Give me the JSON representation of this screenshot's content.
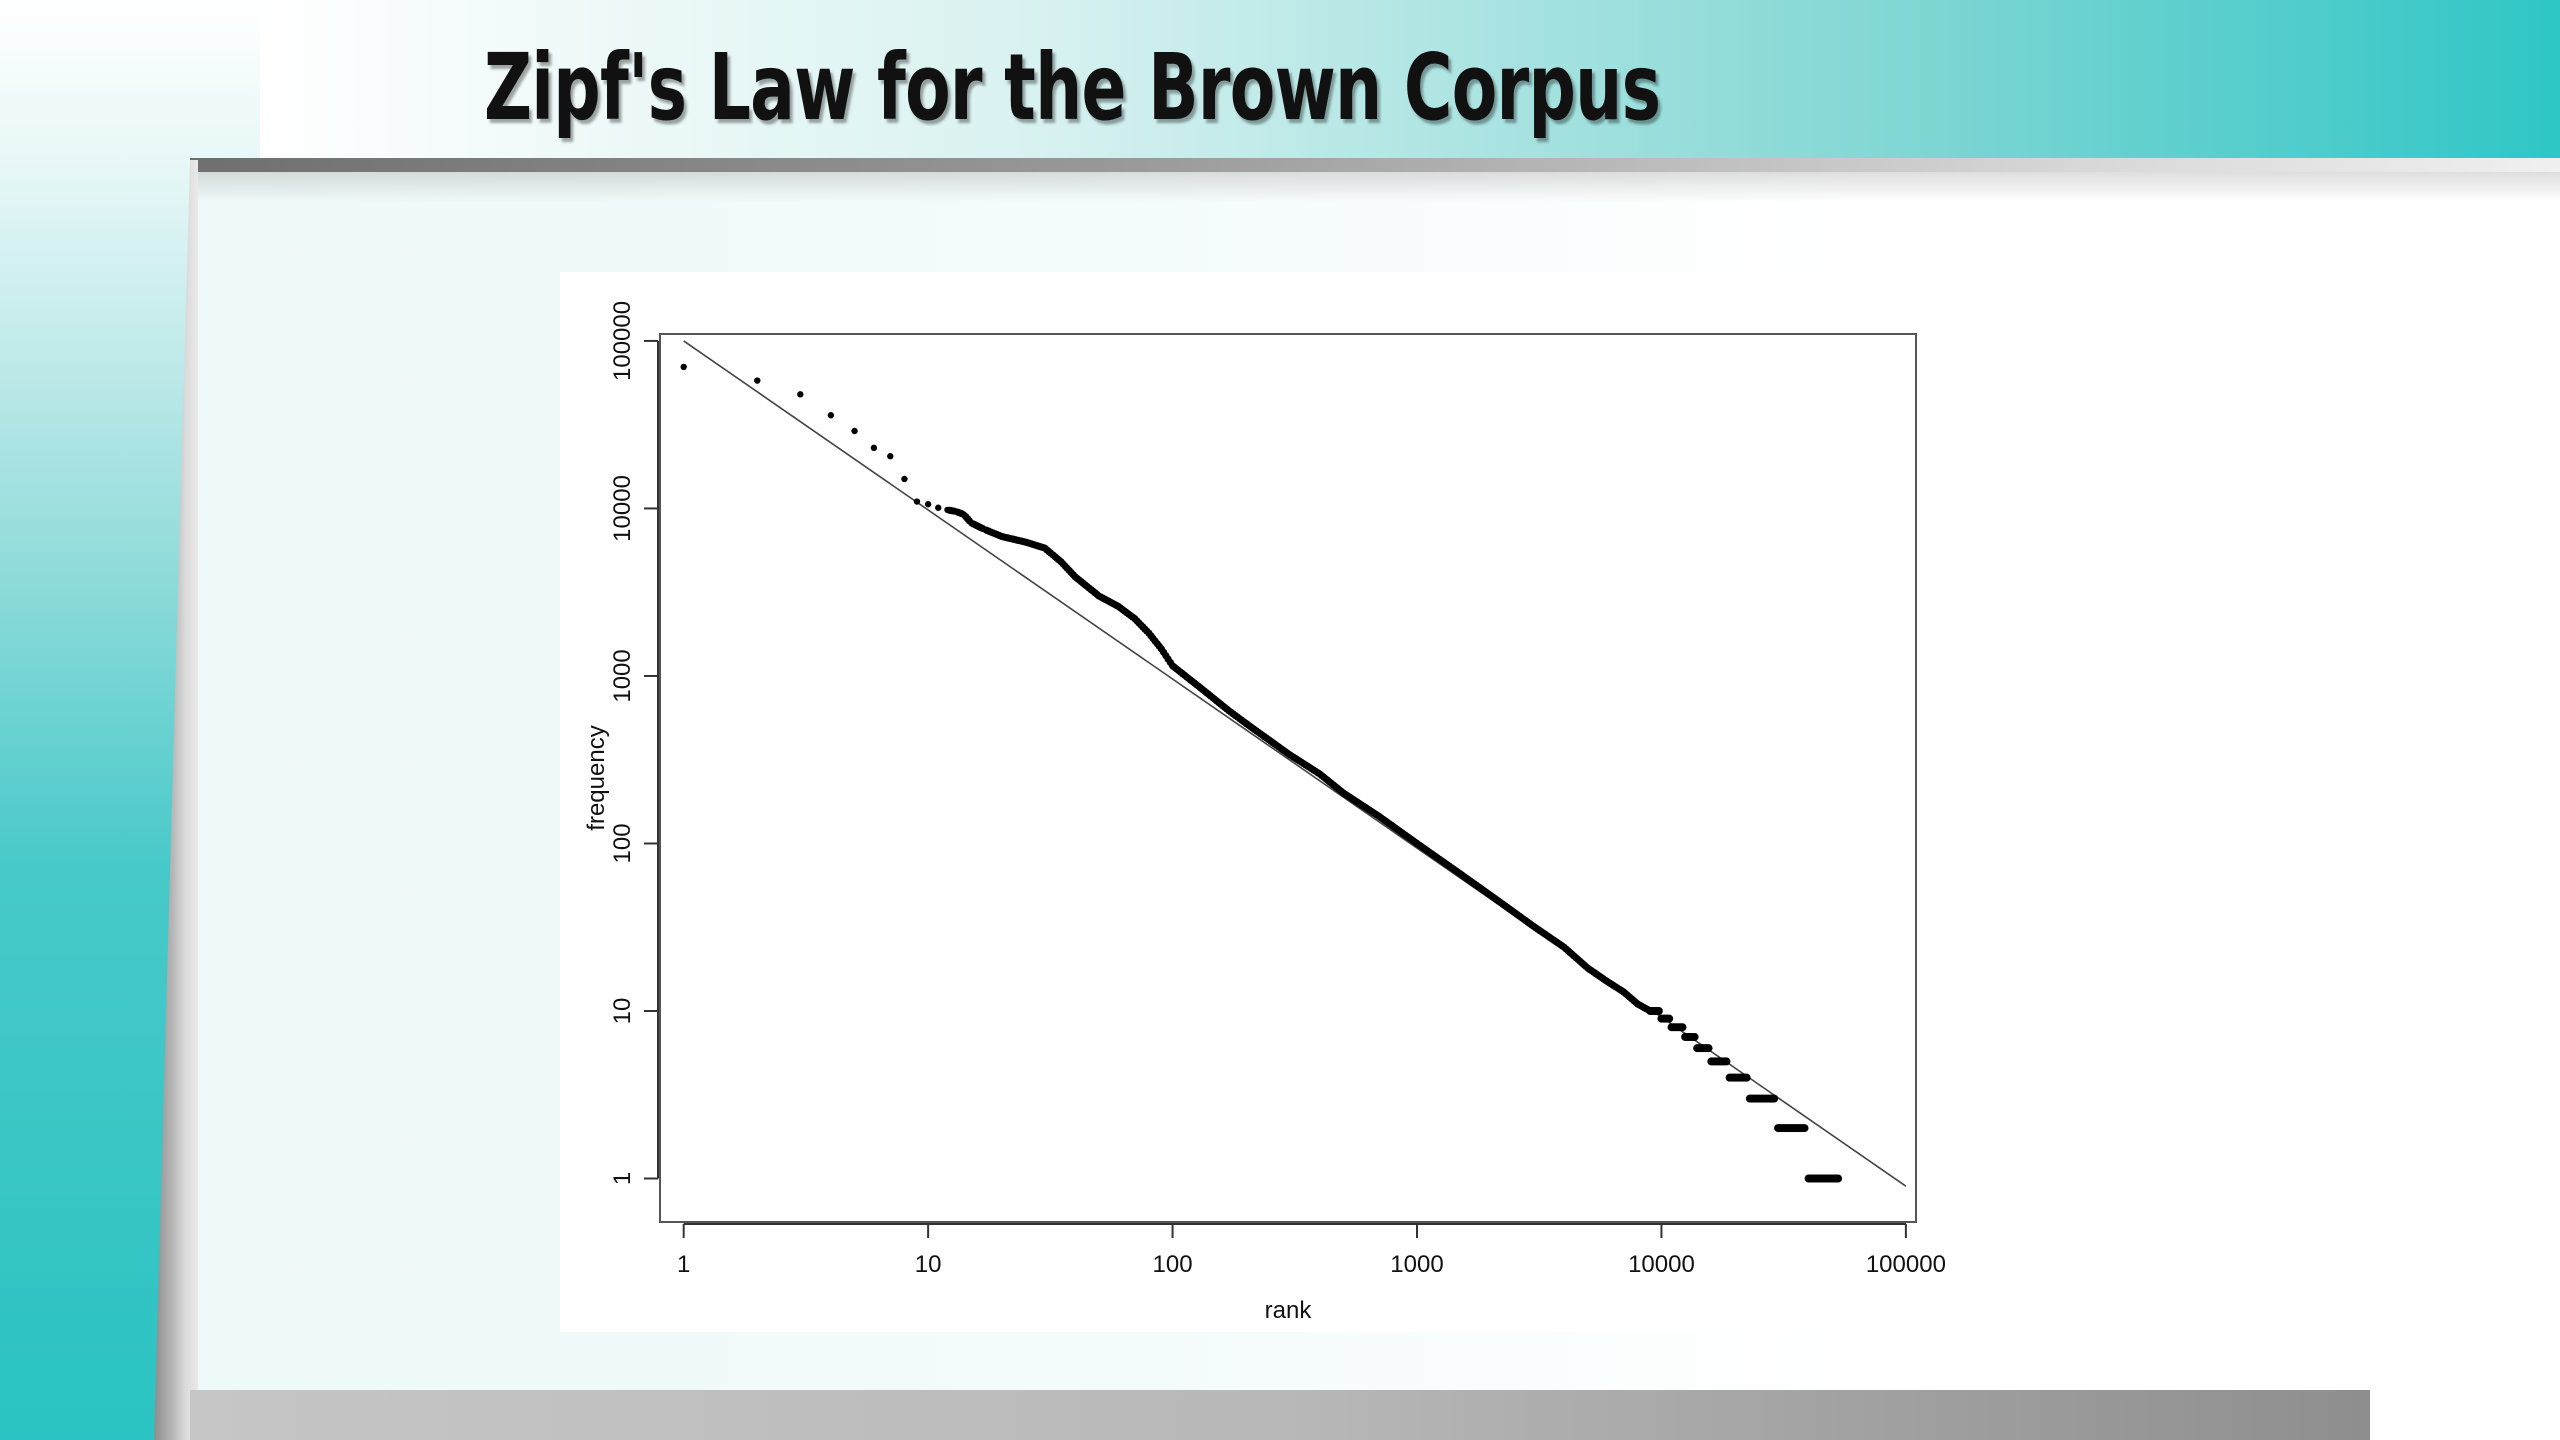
{
  "slide": {
    "title": "Zipf's Law for the Brown Corpus"
  },
  "colors": {
    "accent_teal": "#2fc6c6",
    "title_text": "#111111",
    "points": "#000000",
    "fit_line": "#444444"
  },
  "chart_data": {
    "type": "scatter",
    "title": "",
    "xlabel": "rank",
    "ylabel": "frequency",
    "x_scale": "log",
    "y_scale": "log",
    "xlim": [
      0.8,
      110000
    ],
    "ylim": [
      0.55,
      110000
    ],
    "grid": false,
    "legend": "none",
    "x_ticks": [
      {
        "value": 1,
        "label": "1"
      },
      {
        "value": 10,
        "label": "10"
      },
      {
        "value": 100,
        "label": "100"
      },
      {
        "value": 1000,
        "label": "1000"
      },
      {
        "value": 10000,
        "label": "10000"
      },
      {
        "value": 100000,
        "label": "100000"
      }
    ],
    "y_ticks": [
      {
        "value": 1,
        "label": "1"
      },
      {
        "value": 10,
        "label": "10"
      },
      {
        "value": 100,
        "label": "100"
      },
      {
        "value": 1000,
        "label": "1000"
      },
      {
        "value": 10000,
        "label": "10000"
      },
      {
        "value": 100000,
        "label": "100000"
      }
    ],
    "reference_line": {
      "x": [
        1,
        100000
      ],
      "y": [
        100000,
        0.9
      ]
    },
    "series": [
      {
        "values": [
          {
            "x": 1,
            "y": 69971
          },
          {
            "x": 2,
            "y": 58000
          },
          {
            "x": 3,
            "y": 48000
          },
          {
            "x": 4,
            "y": 36000
          },
          {
            "x": 5,
            "y": 29000
          },
          {
            "x": 6,
            "y": 23000
          },
          {
            "x": 7,
            "y": 20500
          },
          {
            "x": 8,
            "y": 15000
          },
          {
            "x": 9,
            "y": 11000
          },
          {
            "x": 10,
            "y": 10600
          },
          {
            "x": 11,
            "y": 10100
          },
          {
            "x": 12,
            "y": 9800
          },
          {
            "x": 13,
            "y": 9600
          },
          {
            "x": 14,
            "y": 9200
          },
          {
            "x": 15,
            "y": 8200
          },
          {
            "x": 17,
            "y": 7500
          },
          {
            "x": 20,
            "y": 6800
          },
          {
            "x": 25,
            "y": 6300
          },
          {
            "x": 30,
            "y": 5800
          },
          {
            "x": 35,
            "y": 4800
          },
          {
            "x": 40,
            "y": 3900
          },
          {
            "x": 50,
            "y": 3000
          },
          {
            "x": 60,
            "y": 2600
          },
          {
            "x": 70,
            "y": 2200
          },
          {
            "x": 80,
            "y": 1800
          },
          {
            "x": 90,
            "y": 1450
          },
          {
            "x": 100,
            "y": 1150
          },
          {
            "x": 130,
            "y": 850
          },
          {
            "x": 170,
            "y": 620
          },
          {
            "x": 200,
            "y": 520
          },
          {
            "x": 300,
            "y": 340
          },
          {
            "x": 400,
            "y": 260
          },
          {
            "x": 500,
            "y": 200
          },
          {
            "x": 700,
            "y": 145
          },
          {
            "x": 1000,
            "y": 100
          },
          {
            "x": 1500,
            "y": 66
          },
          {
            "x": 2000,
            "y": 49
          },
          {
            "x": 3000,
            "y": 32
          },
          {
            "x": 4000,
            "y": 24
          },
          {
            "x": 5000,
            "y": 18
          },
          {
            "x": 6000,
            "y": 15
          },
          {
            "x": 7000,
            "y": 13
          },
          {
            "x": 8000,
            "y": 11
          },
          {
            "x": 9000,
            "y": 10
          },
          {
            "x": 10000,
            "y": 9
          },
          {
            "x": 11000,
            "y": 8
          },
          {
            "x": 12500,
            "y": 7
          },
          {
            "x": 14000,
            "y": 6
          },
          {
            "x": 16000,
            "y": 5
          },
          {
            "x": 19000,
            "y": 4
          },
          {
            "x": 23000,
            "y": 3
          },
          {
            "x": 30000,
            "y": 2
          },
          {
            "x": 40000,
            "y": 1
          }
        ]
      }
    ]
  }
}
